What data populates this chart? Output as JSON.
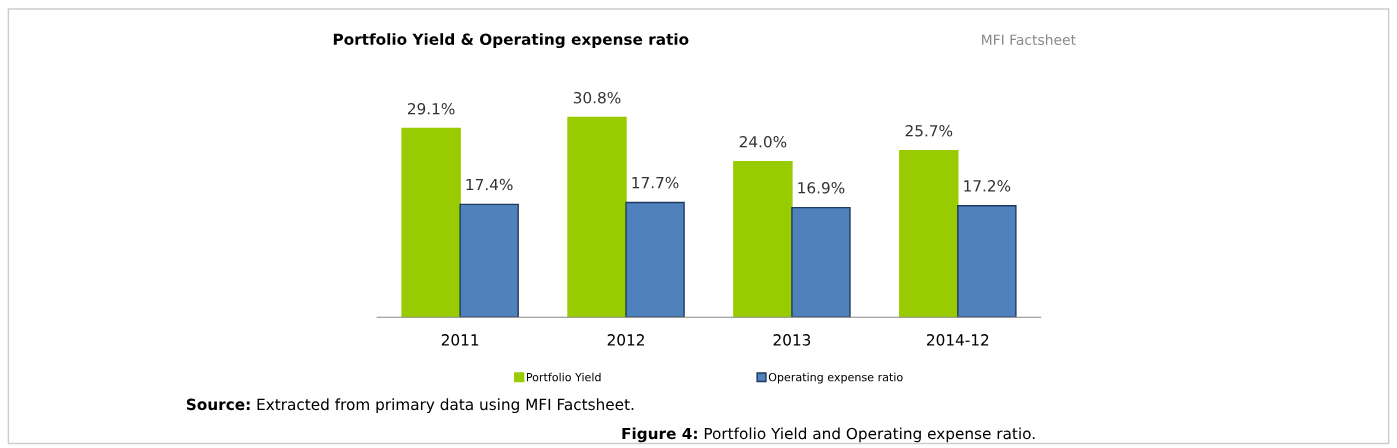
{
  "chart_data": {
    "type": "bar",
    "title": "Portfolio Yield & Operating expense ratio",
    "categories": [
      "2011",
      "2012",
      "2013",
      "2014-12"
    ],
    "series": [
      {
        "name": "Portfolio Yield",
        "color": "#99cc00",
        "values": [
          29.1,
          30.8,
          24.0,
          25.7
        ],
        "value_labels": [
          "29.1%",
          "30.8%",
          "24.0%",
          "25.7%"
        ]
      },
      {
        "name": "Operating expense ratio",
        "color": "#4f81bd",
        "values": [
          17.4,
          17.7,
          16.9,
          17.2
        ],
        "value_labels": [
          "17.4%",
          "17.7%",
          "16.9%",
          "17.2%"
        ]
      }
    ],
    "tick_labels": "x",
    "grid": false,
    "legend": "bottom",
    "annotations": [
      "MFI Factsheet",
      "Source: Extracted from primary data using MFI Factsheet.",
      "Figure 4: Portfolio Yield and Operating expense ratio."
    ]
  }
}
